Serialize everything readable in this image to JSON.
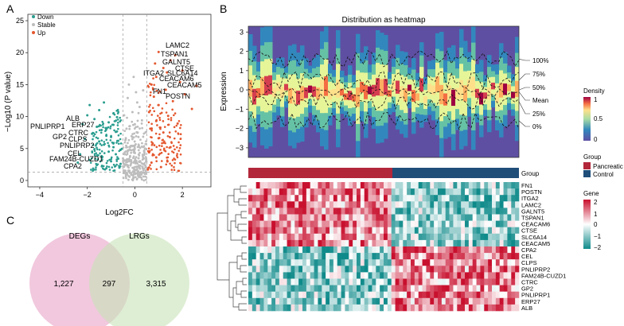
{
  "panel_labels": {
    "a": "A",
    "b": "B",
    "c": "C"
  },
  "volcano": {
    "legend": [
      {
        "label": "Down",
        "color": "#2a9d8f"
      },
      {
        "label": "Stable",
        "color": "#bdbdbd"
      },
      {
        "label": "Up",
        "color": "#e4572e"
      }
    ],
    "ylabel": "−Log10 (P value)",
    "xlabel": "Log2FC",
    "up_genes": [
      "LAMC2",
      "TSPAN1",
      "GALNT5",
      "CTSE",
      "ITGA2",
      "SLC6A14",
      "CEACAM6",
      "CEACAM5",
      "FN1",
      "POSTN"
    ],
    "down_genes": [
      "ALB",
      "PNLIPRP1",
      "ERP27",
      "CTRC",
      "GP2",
      "CLPS",
      "PNLIPRP2",
      "CEL",
      "FAM24B-CUZD1",
      "CPA2"
    ]
  },
  "heatmap_density": {
    "title": "Distribution as heatmap",
    "ylabel": "Expression",
    "quantile_labels": [
      "100%",
      "75%",
      "50%",
      "Mean",
      "25%",
      "0%"
    ],
    "density_legend": {
      "title": "Density",
      "ticks": [
        "1",
        "0.5",
        "0"
      ]
    }
  },
  "group_bar": {
    "label": "Group",
    "legend_title": "Group",
    "legend": [
      {
        "label": "Pancreatic",
        "color": "#b2273a"
      },
      {
        "label": "Control",
        "color": "#1f4e79"
      }
    ]
  },
  "gene_heatmap": {
    "legend_title": "Gene",
    "legend_ticks": [
      "2",
      "1",
      "0",
      "−1",
      "−2"
    ],
    "genes": [
      "FN1",
      "POSTN",
      "ITGA2",
      "LAMC2",
      "GALNT5",
      "TSPAN1",
      "CEACAM6",
      "CTSE",
      "SLC6A14",
      "CEACAM5",
      "CPA2",
      "CEL",
      "CLPS",
      "PNLIPRP2",
      "FAM24B-CUZD1",
      "CTRC",
      "GP2",
      "PNLIPRP1",
      "ERP27",
      "ALB"
    ]
  },
  "venn": {
    "left_label": "DEGs",
    "right_label": "LRGs",
    "left_only": "1,227",
    "overlap": "297",
    "right_only": "3,315"
  },
  "chart_data": [
    {
      "type": "scatter",
      "title": "",
      "xlabel": "Log2FC",
      "ylabel": "−Log10 (P value)",
      "xlim": [
        -4.5,
        3.2
      ],
      "ylim": [
        -1,
        26
      ],
      "xticks": [
        -4,
        -2,
        0,
        2
      ],
      "yticks": [
        0,
        5,
        10,
        15,
        20,
        25
      ],
      "vlines": [
        -0.5,
        0.5
      ],
      "hline": 1.3,
      "series": [
        {
          "name": "Down",
          "color": "#2a9d8f",
          "points": [
            [
              -1.9,
              11.8
            ],
            [
              -2.0,
              10.2
            ],
            [
              -1.7,
              9.6
            ],
            [
              -2.2,
              8.8
            ],
            [
              -1.6,
              8.4
            ],
            [
              -1.4,
              7.9
            ],
            [
              -1.8,
              7.3
            ],
            [
              -1.2,
              7.0
            ],
            [
              -2.1,
              6.5
            ],
            [
              -1.5,
              6.1
            ],
            [
              -1.0,
              6.8
            ],
            [
              -1.3,
              5.6
            ],
            [
              -0.9,
              5.2
            ],
            [
              -1.7,
              4.9
            ],
            [
              -1.1,
              4.5
            ],
            [
              -0.8,
              4.1
            ],
            [
              -1.4,
              3.8
            ],
            [
              -0.7,
              3.4
            ],
            [
              -1.0,
              3.0
            ],
            [
              -0.6,
              2.6
            ],
            [
              -1.9,
              3.2
            ],
            [
              -2.3,
              4.1
            ],
            [
              -0.8,
              7.6
            ],
            [
              -1.1,
              9.1
            ],
            [
              -0.9,
              10.5
            ],
            [
              -1.5,
              11.0
            ],
            [
              -1.3,
              12.2
            ],
            [
              -0.7,
              6.2
            ],
            [
              -0.6,
              4.8
            ],
            [
              -0.65,
              2.0
            ],
            [
              -1.6,
              2.4
            ],
            [
              -1.2,
              1.9
            ],
            [
              -2.4,
              2.8
            ],
            [
              -0.9,
              8.7
            ],
            [
              -0.75,
              9.9
            ]
          ]
        },
        {
          "name": "Stable",
          "color": "#bdbdbd",
          "points": [
            [
              0.0,
              3.0
            ],
            [
              -0.2,
              5.2
            ],
            [
              0.15,
              6.8
            ],
            [
              -0.35,
              8.1
            ],
            [
              0.3,
              9.4
            ],
            [
              -0.1,
              10.7
            ],
            [
              0.2,
              11.5
            ],
            [
              -0.3,
              12.9
            ],
            [
              0.05,
              13.8
            ],
            [
              -0.25,
              15.0
            ],
            [
              0.35,
              14.1
            ],
            [
              -0.4,
              6.3
            ],
            [
              0.4,
              4.4
            ],
            [
              0.1,
              1.8
            ],
            [
              -0.15,
              0.9
            ],
            [
              0.25,
              0.5
            ],
            [
              -0.3,
              2.2
            ],
            [
              0.45,
              7.5
            ],
            [
              -0.45,
              10.2
            ],
            [
              0.0,
              8.8
            ],
            [
              0.1,
              12.2
            ],
            [
              -0.05,
              16.2
            ],
            [
              0.2,
              2.9
            ],
            [
              -0.2,
              3.8
            ]
          ]
        },
        {
          "name": "Up",
          "color": "#e4572e",
          "points": [
            [
              1.0,
              20.1
            ],
            [
              1.5,
              18.8
            ],
            [
              1.2,
              17.6
            ],
            [
              0.9,
              16.2
            ],
            [
              1.9,
              15.4
            ],
            [
              0.7,
              15.0
            ],
            [
              1.3,
              14.2
            ],
            [
              2.1,
              13.5
            ],
            [
              0.8,
              13.1
            ],
            [
              1.6,
              12.4
            ],
            [
              1.0,
              11.8
            ],
            [
              2.4,
              11.2
            ],
            [
              0.6,
              10.7
            ],
            [
              1.4,
              10.1
            ],
            [
              0.9,
              9.3
            ],
            [
              1.8,
              8.9
            ],
            [
              0.65,
              8.1
            ],
            [
              1.2,
              7.5
            ],
            [
              1.0,
              6.6
            ],
            [
              0.75,
              5.8
            ],
            [
              1.5,
              5.2
            ],
            [
              0.6,
              4.4
            ],
            [
              0.9,
              3.6
            ],
            [
              0.7,
              2.8
            ],
            [
              1.1,
              2.1
            ],
            [
              0.55,
              1.7
            ],
            [
              2.0,
              17.2
            ],
            [
              1.7,
              19.6
            ],
            [
              1.35,
              16.9
            ],
            [
              2.6,
              14.8
            ],
            [
              0.85,
              18.3
            ]
          ]
        }
      ],
      "labeled_up": [
        "LAMC2",
        "TSPAN1",
        "GALNT5",
        "CTSE",
        "ITGA2",
        "SLC6A14",
        "CEACAM6",
        "CEACAM5",
        "FN1",
        "POSTN"
      ],
      "labeled_down": [
        "ALB",
        "PNLIPRP1",
        "ERP27",
        "CTRC",
        "GP2",
        "CLPS",
        "PNLIPRP2",
        "CEL",
        "FAM24B-CUZD1",
        "CPA2"
      ]
    },
    {
      "type": "heatmap",
      "title": "Distribution as heatmap",
      "ylabel": "Expression",
      "ylim": [
        -3.5,
        3.3
      ],
      "yticks": [
        -3,
        -2,
        -1,
        0,
        1,
        2,
        3
      ],
      "quantile_levels": {
        "100%": 1.6,
        "75%": 0.5,
        "Mean": -0.1,
        "25%": -0.6,
        "0%": -1.6
      }
    },
    {
      "type": "heatmap",
      "rows": [
        "FN1",
        "POSTN",
        "ITGA2",
        "LAMC2",
        "GALNT5",
        "TSPAN1",
        "CEACAM6",
        "CTSE",
        "SLC6A14",
        "CEACAM5",
        "CPA2",
        "CEL",
        "CLPS",
        "PNLIPRP2",
        "FAM24B-CUZD1",
        "CTRC",
        "GP2",
        "PNLIPRP1",
        "ERP27",
        "ALB"
      ],
      "groups": [
        "Pancreatic",
        "Control"
      ],
      "value_range": [
        -2,
        2
      ]
    },
    {
      "type": "venn",
      "sets": [
        "DEGs",
        "LRGs"
      ],
      "values": {
        "DEGs_only": 1227,
        "overlap": 297,
        "LRGs_only": 3315
      }
    }
  ]
}
